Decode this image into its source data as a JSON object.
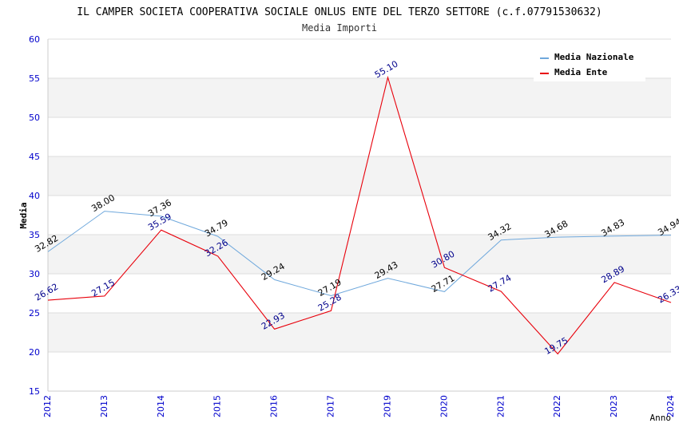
{
  "chart_data": {
    "type": "line",
    "title": "IL CAMPER SOCIETA COOPERATIVA SOCIALE ONLUS ENTE DEL TERZO SETTORE (c.f.07791530632)",
    "subtitle": "Media Importi",
    "xlabel": "Anno",
    "ylabel": "Media",
    "ylim": [
      15,
      60
    ],
    "yticks": [
      "15",
      "20",
      "25",
      "30",
      "35",
      "40",
      "45",
      "50",
      "55",
      "60"
    ],
    "grid": "horizontal, alternating bands",
    "legend_position": "top-right",
    "categories": [
      "2012",
      "2013",
      "2014",
      "2015",
      "2016",
      "2017",
      "2019",
      "2020",
      "2021",
      "2022",
      "2023",
      "2024"
    ],
    "series": [
      {
        "name": "Media Nazionale",
        "color": "#6fa8dc",
        "label_color": "#000000",
        "values": [
          32.82,
          38.0,
          37.36,
          34.79,
          29.24,
          27.19,
          29.43,
          27.71,
          34.32,
          34.68,
          34.83,
          34.94
        ],
        "labels": [
          "32.82",
          "38.00",
          "37.36",
          "34.79",
          "29.24",
          "27.19",
          "29.43",
          "27.71",
          "34.32",
          "34.68",
          "34.83",
          "34.94"
        ]
      },
      {
        "name": "Media Ente",
        "color": "#e8000b",
        "label_color": "#00008b",
        "values": [
          26.62,
          27.15,
          35.59,
          32.26,
          22.93,
          25.28,
          55.1,
          30.8,
          27.74,
          19.75,
          28.89,
          26.33
        ],
        "labels": [
          "26.62",
          "27.15",
          "35.59",
          "32.26",
          "22.93",
          "25.28",
          "55.10",
          "30.80",
          "27.74",
          "19.75",
          "28.89",
          "26.33"
        ]
      }
    ]
  }
}
